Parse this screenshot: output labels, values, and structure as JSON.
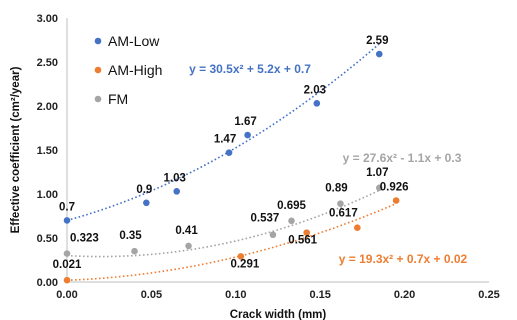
{
  "chart_data": {
    "type": "scatter",
    "xlabel": "Crack width  (mm)",
    "ylabel": "Effective coefficient  (cm²/year)",
    "xlim": [
      0,
      0.25
    ],
    "ylim": [
      0,
      3.0
    ],
    "x_ticks": [
      "0.00",
      "0.05",
      "0.10",
      "0.15",
      "0.20",
      "0.25"
    ],
    "y_ticks": [
      "0.00",
      "0.50",
      "1.00",
      "1.50",
      "2.00",
      "2.50",
      "3.00"
    ],
    "grid": false,
    "legend": "top-left",
    "series": [
      {
        "name": "AM-Low",
        "color": "#4472C4",
        "x": [
          0.0,
          0.047,
          0.065,
          0.096,
          0.107,
          0.148,
          0.185
        ],
        "y": [
          0.7,
          0.9,
          1.03,
          1.47,
          1.67,
          2.03,
          2.59
        ],
        "labels": [
          "0.7",
          "0.9",
          "1.03",
          "1.47",
          "1.67",
          "2.03",
          "2.59"
        ],
        "trendline": {
          "type": "polynomial",
          "coef": [
            30.5,
            5.2,
            0.7
          ],
          "equation": "y = 30.5x² + 5.2x + 0.7"
        }
      },
      {
        "name": "AM-High",
        "color": "#ED7D31",
        "x": [
          0.0,
          0.103,
          0.142,
          0.172,
          0.195
        ],
        "y": [
          0.021,
          0.291,
          0.561,
          0.617,
          0.926
        ],
        "labels": [
          "0.021",
          "0.291",
          "0.561",
          "0.617",
          "0.926"
        ],
        "trendline": {
          "type": "polynomial",
          "coef": [
            19.3,
            0.7,
            0.02
          ],
          "equation": "y = 19.3x² + 0.7x + 0.02"
        }
      },
      {
        "name": "FM",
        "color": "#A5A5A5",
        "x": [
          0.0,
          0.04,
          0.072,
          0.122,
          0.133,
          0.162,
          0.185
        ],
        "y": [
          0.323,
          0.35,
          0.41,
          0.537,
          0.695,
          0.89,
          1.07
        ],
        "labels": [
          "0.323",
          "0.35",
          "0.41",
          "0.537",
          "0.695",
          "0.89",
          "1.07"
        ],
        "trendline": {
          "type": "polynomial",
          "coef": [
            27.6,
            -1.1,
            0.3
          ],
          "equation": "y = 27.6x² - 1.1x + 0.3"
        }
      }
    ]
  }
}
